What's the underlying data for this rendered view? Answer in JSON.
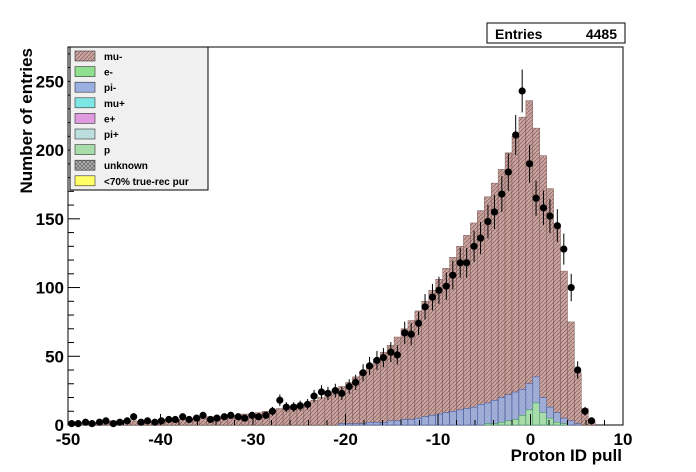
{
  "chart_data": {
    "type": "histogram",
    "xlabel": "Proton ID pull",
    "ylabel": "Number of entries",
    "xlim": [
      -50,
      10
    ],
    "ylim": [
      0,
      275
    ],
    "x_ticks": [
      -50,
      -40,
      -30,
      -20,
      -10,
      0,
      10
    ],
    "y_ticks": [
      0,
      50,
      100,
      150,
      200,
      250
    ],
    "stats": {
      "label": "Entries",
      "value": "4485"
    },
    "legend": [
      {
        "name": "mu-",
        "color": "#c8a4a0"
      },
      {
        "name": "e-",
        "color": "#8ee08e"
      },
      {
        "name": "pi-",
        "color": "#9ab0e0"
      },
      {
        "name": "mu+",
        "color": "#7fe6e6"
      },
      {
        "name": "e+",
        "color": "#e09ae0"
      },
      {
        "name": "pi+",
        "color": "#bcdede"
      },
      {
        "name": "p",
        "color": "#a8dca8"
      },
      {
        "name": "unknown",
        "color": "#b4b4b4"
      },
      {
        "name": "<70% true-rec pur",
        "color": "#ffff66"
      }
    ],
    "bin_width": 0.75,
    "mc_total_x": [
      -50.0,
      -49.25,
      -48.5,
      -47.75,
      -47.0,
      -46.25,
      -45.5,
      -44.75,
      -44.0,
      -43.25,
      -42.5,
      -41.75,
      -41.0,
      -40.25,
      -39.5,
      -38.75,
      -38.0,
      -37.25,
      -36.5,
      -35.75,
      -35.0,
      -34.25,
      -33.5,
      -32.75,
      -32.0,
      -31.25,
      -30.5,
      -29.75,
      -29.0,
      -28.25,
      -27.5,
      -26.75,
      -26.0,
      -25.25,
      -24.5,
      -23.75,
      -23.0,
      -22.25,
      -21.5,
      -20.75,
      -20.0,
      -19.25,
      -18.5,
      -17.75,
      -17.0,
      -16.25,
      -15.5,
      -14.75,
      -14.0,
      -13.25,
      -12.5,
      -11.75,
      -11.0,
      -10.25,
      -9.5,
      -8.75,
      -8.0,
      -7.25,
      -6.5,
      -5.75,
      -5.0,
      -4.25,
      -3.5,
      -2.75,
      -2.0,
      -1.25,
      -0.5,
      0.25,
      1.0,
      1.75,
      2.5,
      3.25,
      4.0,
      4.75,
      5.5,
      6.25,
      7.0
    ],
    "mc_total_y": [
      2,
      2,
      2,
      2,
      2,
      2,
      3,
      3,
      3,
      3,
      3,
      3,
      3,
      4,
      4,
      4,
      4,
      5,
      5,
      5,
      6,
      6,
      6,
      7,
      7,
      8,
      8,
      9,
      10,
      11,
      12,
      13,
      14,
      15,
      16,
      18,
      20,
      22,
      25,
      28,
      31,
      35,
      39,
      44,
      48,
      53,
      58,
      64,
      70,
      76,
      83,
      90,
      98,
      106,
      114,
      122,
      130,
      138,
      147,
      156,
      166,
      176,
      186,
      198,
      210,
      224,
      236,
      216,
      196,
      172,
      145,
      112,
      75,
      38,
      12,
      3,
      0
    ],
    "proton_y": [
      0,
      0,
      0,
      0,
      0,
      0,
      0,
      0,
      0,
      0,
      0,
      0,
      0,
      0,
      0,
      0,
      0,
      0,
      0,
      0,
      0,
      0,
      0,
      0,
      0,
      0,
      0,
      0,
      0,
      0,
      0,
      0,
      0,
      0,
      0,
      0,
      0,
      0,
      0,
      0,
      0,
      0,
      0,
      0,
      0,
      0,
      0,
      0,
      0,
      0,
      0,
      0,
      0,
      0,
      0,
      0,
      0,
      0,
      0,
      0,
      1,
      1,
      2,
      3,
      4,
      7,
      11,
      16,
      9,
      5,
      2,
      1,
      0,
      0,
      0,
      0,
      0
    ],
    "background_y": [
      0,
      0,
      0,
      0,
      0,
      0,
      0,
      0,
      0,
      0,
      0,
      0,
      0,
      0,
      0,
      0,
      0,
      0,
      0,
      0,
      0,
      0,
      0,
      0,
      0,
      0,
      0,
      0,
      0,
      0,
      0,
      0,
      0,
      0,
      0,
      0,
      0,
      0,
      0,
      1,
      1,
      1,
      1,
      2,
      2,
      2,
      3,
      3,
      4,
      4,
      5,
      6,
      7,
      8,
      9,
      10,
      11,
      12,
      13,
      15,
      16,
      18,
      20,
      22,
      24,
      26,
      30,
      35,
      20,
      13,
      9,
      5,
      3,
      1,
      0,
      0,
      0
    ],
    "data_x": [
      -49.6,
      -48.9,
      -48.1,
      -47.4,
      -46.6,
      -45.9,
      -45.1,
      -44.4,
      -43.6,
      -42.9,
      -42.1,
      -41.4,
      -40.6,
      -39.9,
      -39.1,
      -38.4,
      -37.6,
      -36.9,
      -36.1,
      -35.4,
      -34.6,
      -33.9,
      -33.1,
      -32.4,
      -31.6,
      -30.9,
      -30.1,
      -29.4,
      -28.6,
      -27.9,
      -27.1,
      -26.4,
      -25.6,
      -24.9,
      -24.1,
      -23.4,
      -22.6,
      -21.9,
      -21.1,
      -20.4,
      -19.6,
      -18.9,
      -18.1,
      -17.4,
      -16.6,
      -15.9,
      -15.1,
      -14.4,
      -13.6,
      -12.9,
      -12.1,
      -11.4,
      -10.6,
      -9.9,
      -9.1,
      -8.4,
      -7.6,
      -6.9,
      -6.1,
      -5.4,
      -4.6,
      -3.9,
      -3.1,
      -2.4,
      -1.6,
      -0.9,
      -0.1,
      0.6,
      1.4,
      2.1,
      2.9,
      3.6,
      4.4,
      5.1,
      5.9,
      6.6
    ],
    "data_y": [
      1,
      1,
      2,
      1,
      2,
      3,
      1,
      2,
      3,
      6,
      2,
      3,
      2,
      3,
      4,
      4,
      6,
      4,
      5,
      7,
      4,
      5,
      6,
      7,
      6,
      5,
      7,
      6,
      7,
      10,
      18,
      13,
      13,
      14,
      15,
      21,
      24,
      23,
      25,
      23,
      28,
      31,
      38,
      43,
      47,
      49,
      53,
      51,
      67,
      66,
      74,
      86,
      93,
      98,
      101,
      109,
      118,
      118,
      130,
      136,
      148,
      155,
      168,
      184,
      211,
      243,
      190,
      165,
      158,
      152,
      145,
      128,
      100,
      40,
      10,
      3
    ],
    "data_err": [
      1,
      1,
      1.4,
      1,
      1.4,
      1.7,
      1,
      1.4,
      1.7,
      2.4,
      1.4,
      1.7,
      1.4,
      1.7,
      2,
      2,
      2.4,
      2,
      2.2,
      2.6,
      2,
      2.2,
      2.4,
      2.6,
      2.4,
      2.2,
      2.6,
      2.4,
      2.6,
      3.2,
      4.2,
      3.6,
      3.6,
      3.7,
      3.9,
      4.6,
      4.9,
      4.8,
      5,
      4.8,
      5.3,
      5.6,
      6.2,
      6.6,
      6.9,
      7,
      7.3,
      7.1,
      8.2,
      8.1,
      8.6,
      9.3,
      9.6,
      9.9,
      10,
      10.4,
      10.9,
      10.9,
      11.4,
      11.7,
      12.2,
      12.4,
      13,
      13.6,
      14.5,
      15.6,
      13.8,
      12.8,
      12.6,
      12.3,
      12,
      11.3,
      10,
      6.3,
      3.2,
      1.7
    ]
  }
}
